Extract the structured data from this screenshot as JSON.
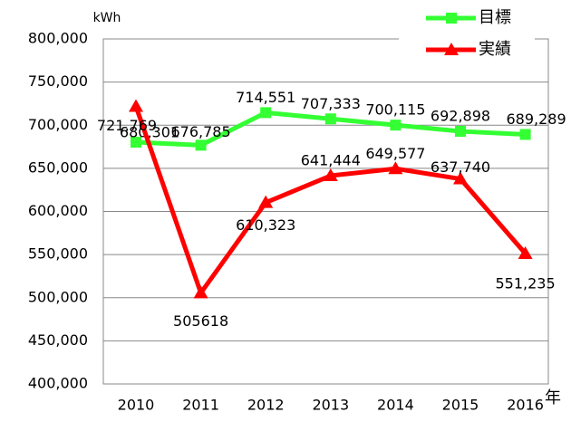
{
  "chart_data": {
    "type": "line",
    "y_axis_label": "kWh",
    "x_axis_label": "年",
    "categories": [
      "2010",
      "2011",
      "2012",
      "2013",
      "2014",
      "2015",
      "2016"
    ],
    "series": [
      {
        "name": "目標",
        "color": "#33ff33",
        "marker": "square",
        "values": [
          680301,
          676785,
          714551,
          707333,
          700115,
          692898,
          689289
        ],
        "value_labels": [
          "680,301",
          "676,785",
          "714,551",
          "707,333",
          "700,115",
          "692,898",
          "689,289"
        ]
      },
      {
        "name": "実績",
        "color": "#ff0000",
        "marker": "triangle",
        "values": [
          721769,
          505618,
          610323,
          641444,
          649577,
          637740,
          551235
        ],
        "value_labels": [
          "721,769",
          "505618",
          "610,323",
          "641,444",
          "649,577",
          "637,740",
          "551,235"
        ]
      }
    ],
    "ylim": [
      400000,
      800000
    ],
    "yticks": [
      {
        "value": 400000,
        "label": "400,000"
      },
      {
        "value": 450000,
        "label": "450,000"
      },
      {
        "value": 500000,
        "label": "500,000"
      },
      {
        "value": 550000,
        "label": "550,000"
      },
      {
        "value": 600000,
        "label": "600,000"
      },
      {
        "value": 650000,
        "label": "650,000"
      },
      {
        "value": 700000,
        "label": "700,000"
      },
      {
        "value": 750000,
        "label": "750,000"
      },
      {
        "value": 800000,
        "label": "800,000"
      }
    ],
    "grid": true,
    "legend": "top-right"
  }
}
